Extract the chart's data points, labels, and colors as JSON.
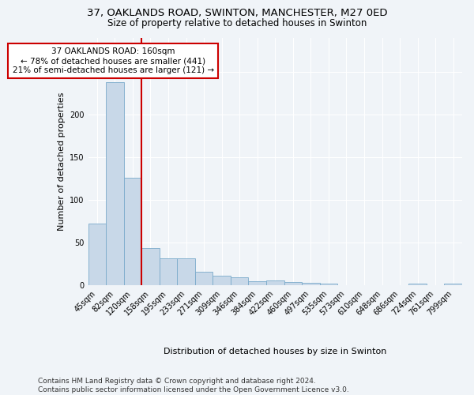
{
  "title_line1": "37, OAKLANDS ROAD, SWINTON, MANCHESTER, M27 0ED",
  "title_line2": "Size of property relative to detached houses in Swinton",
  "xlabel": "Distribution of detached houses by size in Swinton",
  "ylabel": "Number of detached properties",
  "categories": [
    "45sqm",
    "82sqm",
    "120sqm",
    "158sqm",
    "195sqm",
    "233sqm",
    "271sqm",
    "309sqm",
    "346sqm",
    "384sqm",
    "422sqm",
    "460sqm",
    "497sqm",
    "535sqm",
    "573sqm",
    "610sqm",
    "648sqm",
    "686sqm",
    "724sqm",
    "761sqm",
    "799sqm"
  ],
  "values": [
    72,
    238,
    126,
    44,
    32,
    32,
    16,
    11,
    10,
    5,
    6,
    4,
    3,
    2,
    0,
    0,
    0,
    0,
    2,
    0,
    2
  ],
  "bar_color": "#c8d8e8",
  "bar_edge_color": "#7aaacb",
  "vline_color": "#cc0000",
  "annotation_text": "37 OAKLANDS ROAD: 160sqm\n← 78% of detached houses are smaller (441)\n21% of semi-detached houses are larger (121) →",
  "annotation_box_color": "white",
  "annotation_box_edge_color": "#cc0000",
  "annotation_fontsize": 7.5,
  "footer_text": "Contains HM Land Registry data © Crown copyright and database right 2024.\nContains public sector information licensed under the Open Government Licence v3.0.",
  "ylim": [
    0,
    290
  ],
  "background_color": "#f0f4f8",
  "grid_color": "white",
  "title_fontsize": 9.5,
  "subtitle_fontsize": 8.5,
  "axis_label_fontsize": 8,
  "tick_fontsize": 7,
  "footer_fontsize": 6.5,
  "ylabel_fontsize": 8
}
